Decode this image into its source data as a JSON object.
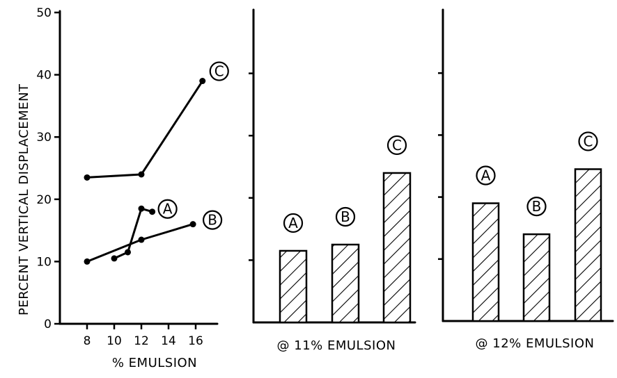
{
  "chart_data": [
    {
      "type": "line",
      "ylabel": "PERCENT VERTICAL DISPLACEMENT",
      "xlabel": "% EMULSION",
      "x_ticks": [
        "8",
        "10",
        "12",
        "14",
        "16"
      ],
      "y_ticks": [
        "0",
        "10",
        "20",
        "30",
        "40",
        "50"
      ],
      "xlim": [
        6,
        18
      ],
      "ylim": [
        0,
        50
      ],
      "series": [
        {
          "name": "C",
          "x": [
            8,
            12,
            16.5
          ],
          "y": [
            23.5,
            24,
            39
          ]
        },
        {
          "name": "A",
          "x": [
            10,
            11,
            12,
            12.8
          ],
          "y": [
            10.5,
            11.5,
            18.5,
            18
          ]
        },
        {
          "name": "B",
          "x": [
            8,
            12,
            15.8
          ],
          "y": [
            10,
            13.5,
            16
          ]
        }
      ]
    },
    {
      "type": "bar",
      "xlabel": "@ 11% EMULSION",
      "categories": [
        "A",
        "B",
        "C"
      ],
      "values": [
        11.5,
        12.5,
        24
      ],
      "ylim": [
        0,
        50
      ]
    },
    {
      "type": "bar",
      "xlabel": "@ 12% EMULSION",
      "categories": [
        "A",
        "B",
        "C"
      ],
      "values": [
        19,
        14,
        24.5
      ],
      "ylim": [
        0,
        50
      ]
    }
  ]
}
